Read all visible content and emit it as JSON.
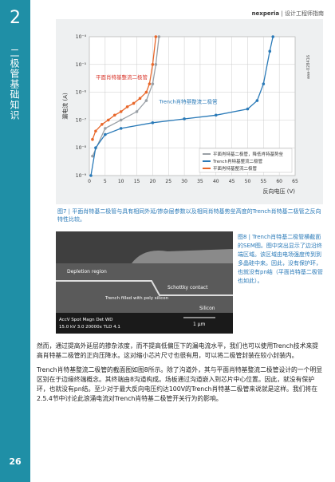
{
  "header": {
    "chapter_number": "2",
    "section_title": "二极管基础知识",
    "brand": "nexperia",
    "separator": "|",
    "guide_title": "设计工程师指南"
  },
  "chart_data": {
    "type": "line",
    "ylabel": "漏电流 (A)",
    "xlabel": "反向电压 (V)",
    "image_id": "aaa-028416",
    "ylog": true,
    "grid": true,
    "xlim": [
      0,
      65
    ],
    "xticks": [
      0,
      5,
      10,
      15,
      20,
      25,
      30,
      35,
      40,
      45,
      50,
      55,
      60,
      65
    ],
    "ylim": [
      1e-09,
      0.0001
    ],
    "yticks": [
      {
        "value": 0.0001,
        "label": "10⁻⁴"
      },
      {
        "value": 1e-05,
        "label": "10⁻⁵"
      },
      {
        "value": 1e-06,
        "label": "10⁻⁶"
      },
      {
        "value": 1e-07,
        "label": "10⁻⁷"
      },
      {
        "value": 1e-08,
        "label": "10⁻⁸"
      },
      {
        "value": 1e-09,
        "label": "10⁻⁹"
      }
    ],
    "series": [
      {
        "name": "平面肖特基二极管，降低肖特基势垒",
        "color": "#9aa0a6",
        "x": [
          1,
          5,
          10,
          15,
          18,
          20,
          21,
          22
        ],
        "values": [
          5e-09,
          5e-08,
          1e-07,
          2e-07,
          5e-07,
          2e-06,
          1e-05,
          0.0001
        ]
      },
      {
        "name": "Trench肖特基整流二极管",
        "color": "#2a7ab8",
        "x": [
          0.5,
          2,
          5,
          10,
          20,
          30,
          40,
          50,
          53,
          55,
          57,
          58
        ],
        "values": [
          1e-09,
          1e-08,
          3e-08,
          5e-08,
          8e-08,
          1.1e-07,
          1.5e-07,
          2.5e-07,
          5e-07,
          2e-06,
          3e-05,
          0.0001
        ]
      },
      {
        "name": "平面肖特基整流二极管",
        "color": "#e8672a",
        "x": [
          1,
          2,
          4,
          6,
          8,
          10,
          12,
          14,
          16,
          18,
          19,
          20,
          21
        ],
        "values": [
          2e-08,
          4e-08,
          7e-08,
          1e-07,
          1.5e-07,
          2e-07,
          3e-07,
          4e-07,
          6e-07,
          1e-06,
          2e-06,
          1e-05,
          0.0001
        ]
      }
    ],
    "annotations": [
      {
        "text": "平面肖特基整流二极管",
        "color": "#d9362b"
      },
      {
        "text": "Trench肖特基整流二极管",
        "color": "#2a7ab8"
      }
    ]
  },
  "figure7_caption": "图7 | 平面肖特基二极管与具有相同外延/掺杂层参数以及相同肖特基势垒高度的Trench肖特基二极管之反向特性比较。",
  "figure8": {
    "labels": [
      "Depletion region",
      "Trench filled with poly silicon",
      "Schottky contact",
      "Silicon"
    ],
    "info": [
      "AccV  Spot Magn   Det  WD",
      "15.0 kV 3.0 20000x TLD 4.1"
    ],
    "scale": "1 μm",
    "caption": "图8 | Trench肖特基二极管横截面的SEM图。图中突出显示了边沿终端区域。该区域由电场强度传到到多晶硅中来。因此，没有保护环，也就没有pn结（平面肖特基二极管也如此）。"
  },
  "body": [
    "然而，通过提高外延层的掺杂浓度，而不提高低偏压下的漏电流水平，我们也可以使用Trench技术来提高肖特基二极管的正向压降水。这对缩小芯片尺寸也很有用，可以将二极管封装在较小封装内。",
    "Trench肖特基整流二极管的截面图如图8所示。除了沟道外，其与平面肖特基整流二极管设计的一个明显区别在于边缘终端概念。其终端由8沟道构成。场板通过沟道嵌入到芯片中心位置。因此，就没有保护环，也就没有pn结。至少对于最大反向电压约达100V的Trench肖特基二极管来说就是这样。我们将在2.5.4节中讨论此浪涌电流对Trench肖特基二极管开关行为的影响。"
  ],
  "page_number": "26"
}
